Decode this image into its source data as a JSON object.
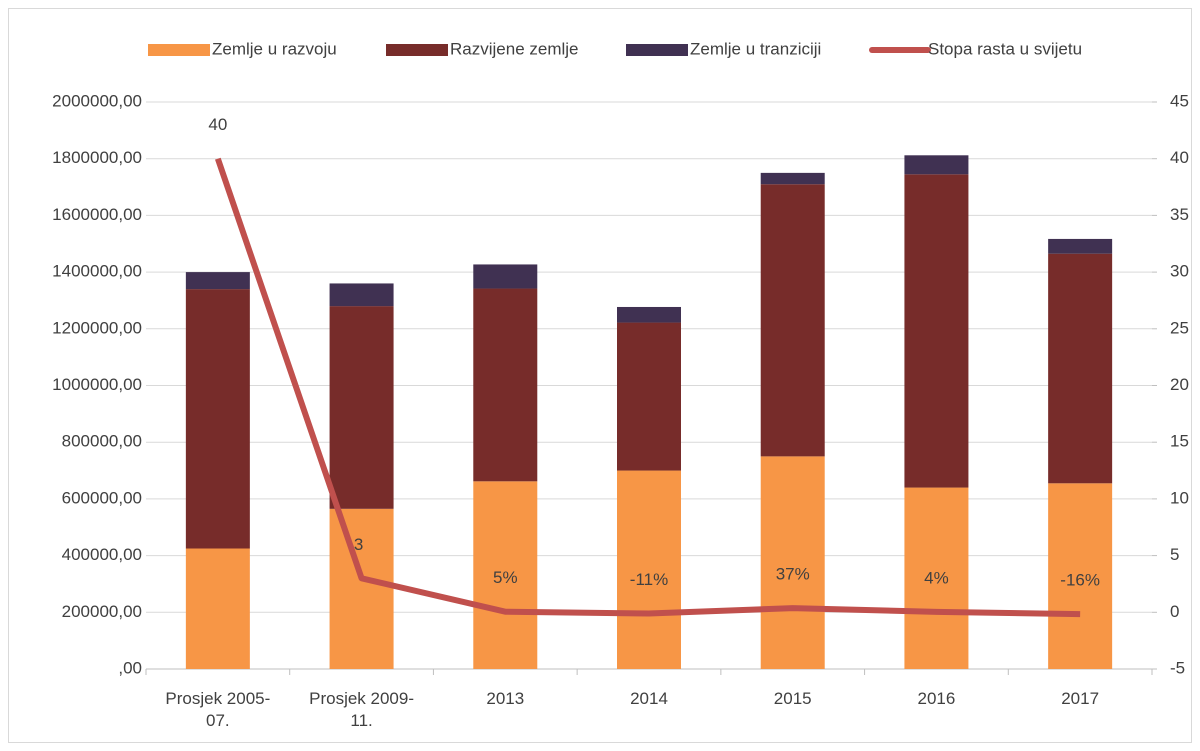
{
  "chart_data": {
    "type": "bar",
    "stacked": true,
    "categories": [
      "Prosjek 2005-07.",
      "Prosjek 2009-11.",
      "2013",
      "2014",
      "2015",
      "2016",
      "2017"
    ],
    "series": [
      {
        "name": "Zemlje u razvoju",
        "color": "#f79646",
        "values": [
          425000,
          565000,
          662000,
          700000,
          750000,
          640000,
          655000
        ]
      },
      {
        "name": "Razvijene zemlje",
        "color": "#772c2a",
        "values": [
          915000,
          715000,
          680000,
          522000,
          960000,
          1105000,
          810000
        ]
      },
      {
        "name": "Zemlje u tranziciji",
        "color": "#403152",
        "values": [
          60000,
          80000,
          85000,
          55000,
          40000,
          67000,
          52000
        ]
      },
      {
        "name": "Stopa rasta u svijetu",
        "color": "#c0504d",
        "type": "line",
        "axis": "y2",
        "values": [
          40,
          3,
          0.05,
          -0.11,
          0.37,
          0.04,
          -0.16
        ],
        "value_labels": [
          "40",
          "3",
          "5%",
          "-11%",
          "37%",
          "4%",
          "-16%"
        ]
      }
    ],
    "ylim": [
      0,
      2000000
    ],
    "yticks": [
      {
        "value": 0,
        "label": ",00"
      },
      {
        "value": 200000,
        "label": "200000,00"
      },
      {
        "value": 400000,
        "label": "400000,00"
      },
      {
        "value": 600000,
        "label": "600000,00"
      },
      {
        "value": 800000,
        "label": "800000,00"
      },
      {
        "value": 1000000,
        "label": "1000000,00"
      },
      {
        "value": 1200000,
        "label": "1200000,00"
      },
      {
        "value": 1400000,
        "label": "1400000,00"
      },
      {
        "value": 1600000,
        "label": "1600000,00"
      },
      {
        "value": 1800000,
        "label": "1800000,00"
      },
      {
        "value": 2000000,
        "label": "2000000,00"
      }
    ],
    "y2lim": [
      -5,
      45
    ],
    "y2ticks": [
      -5,
      0,
      5,
      10,
      15,
      20,
      25,
      30,
      35,
      40,
      45
    ],
    "grid": true,
    "legend": "top"
  }
}
